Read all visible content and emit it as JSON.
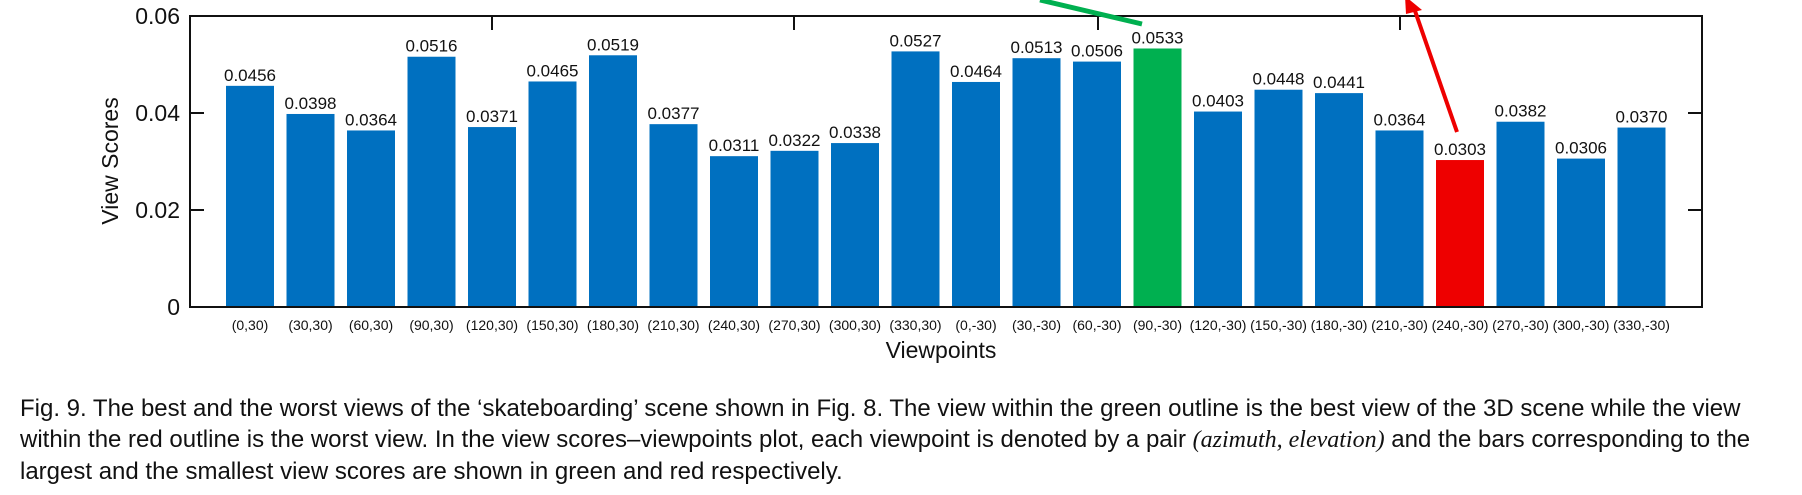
{
  "chart_data": {
    "type": "bar",
    "ylabel": "View Scores",
    "xlabel": "Viewpoints",
    "ylim": [
      0,
      0.06
    ],
    "yticks": [
      "0",
      "0.02",
      "0.04",
      "0.06"
    ],
    "ytick_values": [
      0,
      0.02,
      0.04,
      0.06
    ],
    "categories": [
      "(0,30)",
      "(30,30)",
      "(60,30)",
      "(90,30)",
      "(120,30)",
      "(150,30)",
      "(180,30)",
      "(210,30)",
      "(240,30)",
      "(270,30)",
      "(300,30)",
      "(330,30)",
      "(0,-30)",
      "(30,-30)",
      "(60,-30)",
      "(90,-30)",
      "(120,-30)",
      "(150,-30)",
      "(180,-30)",
      "(210,-30)",
      "(240,-30)",
      "(270,-30)",
      "(300,-30)",
      "(330,-30)"
    ],
    "values": [
      0.0456,
      0.0398,
      0.0364,
      0.0516,
      0.0371,
      0.0465,
      0.0519,
      0.0377,
      0.0311,
      0.0322,
      0.0338,
      0.0527,
      0.0464,
      0.0513,
      0.0506,
      0.0533,
      0.0403,
      0.0448,
      0.0441,
      0.0364,
      0.0303,
      0.0382,
      0.0306,
      0.037
    ],
    "value_labels": [
      "0.0456",
      "0.0398",
      "0.0364",
      "0.0516",
      "0.0371",
      "0.0465",
      "0.0519",
      "0.0377",
      "0.0311",
      "0.0322",
      "0.0338",
      "0.0527",
      "0.0464",
      "0.0513",
      "0.0506",
      "0.0533",
      "0.0403",
      "0.0448",
      "0.0441",
      "0.0364",
      "0.0303",
      "0.0382",
      "0.0306",
      "0.0370"
    ],
    "highlight": {
      "best_index": 15,
      "worst_index": 20
    },
    "colors": {
      "bar": "#0070c0",
      "best": "#00b050",
      "worst": "#ee0000",
      "axis": "#111111"
    }
  },
  "caption": {
    "part1": "Fig. 9. The best and the worst views of the ‘skateboarding’ scene shown in Fig. 8. The view within the green outline is the best view of the 3D scene while the view within the red outline is the worst view. In the view scores–viewpoints plot, each viewpoint is denoted by a pair ",
    "math": "(azimuth, elevation)",
    "part2": " and the bars corresponding to the largest and the smallest view scores are shown in green and red respectively."
  }
}
